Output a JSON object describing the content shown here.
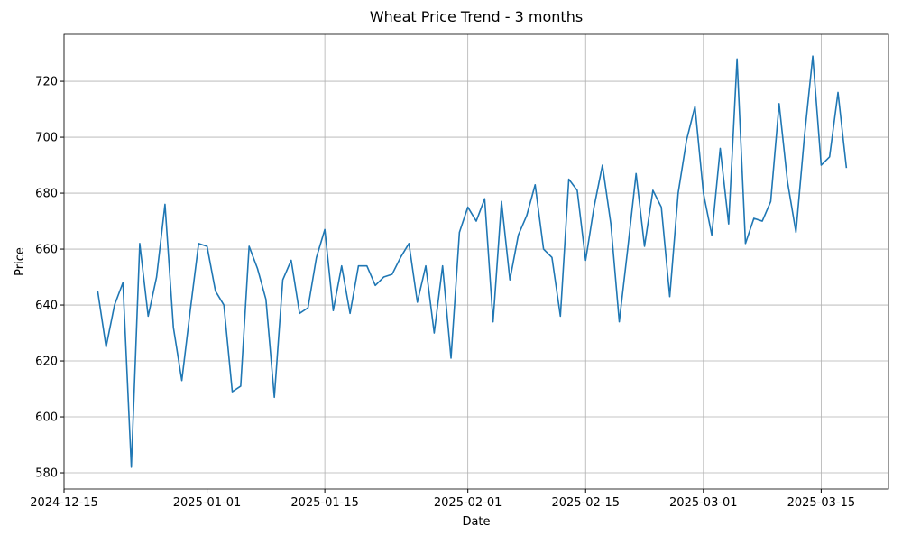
{
  "chart_data": {
    "type": "line",
    "title": "Wheat Price Trend - 3 months",
    "x_label": "Date",
    "y_label": "Price",
    "x": [
      "2024-12-19",
      "2024-12-20",
      "2024-12-21",
      "2024-12-22",
      "2024-12-23",
      "2024-12-24",
      "2024-12-25",
      "2024-12-26",
      "2024-12-27",
      "2024-12-28",
      "2024-12-29",
      "2024-12-30",
      "2024-12-31",
      "2025-01-01",
      "2025-01-02",
      "2025-01-03",
      "2025-01-04",
      "2025-01-05",
      "2025-01-06",
      "2025-01-07",
      "2025-01-08",
      "2025-01-09",
      "2025-01-10",
      "2025-01-11",
      "2025-01-12",
      "2025-01-13",
      "2025-01-14",
      "2025-01-15",
      "2025-01-16",
      "2025-01-17",
      "2025-01-18",
      "2025-01-19",
      "2025-01-20",
      "2025-01-21",
      "2025-01-22",
      "2025-01-23",
      "2025-01-24",
      "2025-01-25",
      "2025-01-26",
      "2025-01-27",
      "2025-01-28",
      "2025-01-29",
      "2025-01-30",
      "2025-01-31",
      "2025-02-01",
      "2025-02-02",
      "2025-02-03",
      "2025-02-04",
      "2025-02-05",
      "2025-02-06",
      "2025-02-07",
      "2025-02-08",
      "2025-02-09",
      "2025-02-10",
      "2025-02-11",
      "2025-02-12",
      "2025-02-13",
      "2025-02-14",
      "2025-02-15",
      "2025-02-16",
      "2025-02-17",
      "2025-02-18",
      "2025-02-19",
      "2025-02-20",
      "2025-02-21",
      "2025-02-22",
      "2025-02-23",
      "2025-02-24",
      "2025-02-25",
      "2025-02-26",
      "2025-02-27",
      "2025-02-28",
      "2025-03-01",
      "2025-03-02",
      "2025-03-03",
      "2025-03-04",
      "2025-03-05",
      "2025-03-06",
      "2025-03-07",
      "2025-03-08",
      "2025-03-09",
      "2025-03-10",
      "2025-03-11",
      "2025-03-12",
      "2025-03-13",
      "2025-03-14",
      "2025-03-15",
      "2025-03-16",
      "2025-03-17",
      "2025-03-18"
    ],
    "series": [
      {
        "name": "Price",
        "color": "#1f77b4",
        "values": [
          645,
          625,
          640,
          648,
          582,
          662,
          636,
          650,
          676,
          632,
          613,
          638,
          662,
          661,
          645,
          640,
          609,
          611,
          661,
          653,
          642,
          607,
          649,
          656,
          637,
          639,
          657,
          667,
          638,
          654,
          637,
          654,
          654,
          647,
          650,
          651,
          657,
          662,
          641,
          654,
          630,
          654,
          621,
          666,
          675,
          670,
          678,
          634,
          677,
          649,
          665,
          672,
          683,
          660,
          657,
          636,
          685,
          681,
          656,
          675,
          690,
          669,
          634,
          660,
          687,
          661,
          681,
          675,
          643,
          680,
          699,
          711,
          680,
          665,
          696,
          669,
          728,
          662,
          671,
          670,
          677,
          712,
          684,
          666,
          700,
          729,
          690,
          693,
          716,
          689
        ]
      }
    ],
    "xlim": [
      "2024-12-15",
      "2025-03-23"
    ],
    "xticks": [
      "2024-12-15",
      "2025-01-01",
      "2025-01-15",
      "2025-02-01",
      "2025-02-15",
      "2025-03-01",
      "2025-03-15"
    ],
    "ylim": [
      574.2,
      736.8
    ],
    "yticks": [
      580,
      600,
      620,
      640,
      660,
      680,
      700,
      720
    ],
    "grid": true
  }
}
